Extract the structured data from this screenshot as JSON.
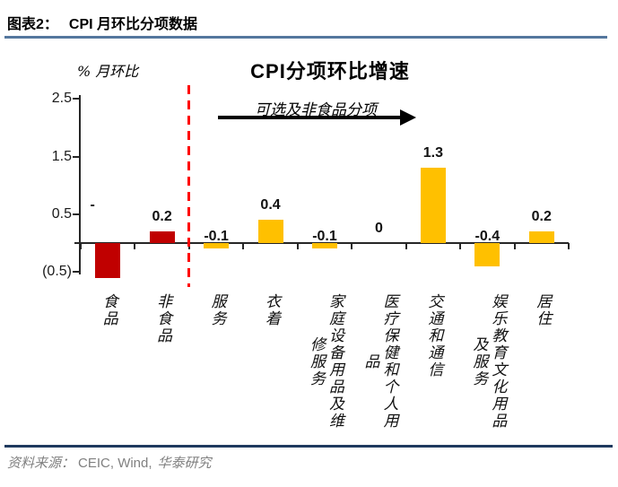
{
  "header": {
    "figure_label": "图表2：",
    "title": "CPI 月环比分项数据"
  },
  "footer": {
    "source_label": "资料来源：",
    "sources": "CEIC, Wind,",
    "org": "华泰研究"
  },
  "colors": {
    "negative_series_red": "#C00000",
    "optional_series_gold": "#FFC000",
    "divider_red": "#FF0000",
    "header_rule_blue": "#54779E",
    "footer_rule_navy": "#1F3A5F",
    "source_text_gray": "#808080",
    "axis_dark": "#262626"
  },
  "chart_data": {
    "type": "bar",
    "title": "CPI分项环比增速",
    "ylabel": "% 月环比",
    "annotation": "可选及非食品分项",
    "grid": false,
    "legend": "none",
    "ylim": [
      -0.6,
      2.5
    ],
    "y_ticks": [
      {
        "value": 2.5,
        "label": "2.5"
      },
      {
        "value": 1.5,
        "label": "1.5"
      },
      {
        "value": 0.5,
        "label": "0.5"
      },
      {
        "value": -0.5,
        "label": "(0.5)"
      }
    ],
    "divider_after_index": 2,
    "categories": [
      "食品",
      "非食品",
      "服务",
      "衣着",
      "家庭设备用品及维修服务",
      "医疗保健和个人用品",
      "交通和通信",
      "娱乐教育文化用品及服务",
      "居住"
    ],
    "points": [
      {
        "category": "食品",
        "columns": [
          "食品"
        ],
        "value": -0.6,
        "label": "-",
        "color": "#C00000"
      },
      {
        "category": "非食品",
        "columns": [
          "非食品"
        ],
        "value": 0.2,
        "label": "0.2",
        "color": "#C00000"
      },
      {
        "category": "服务",
        "columns": [
          "服务"
        ],
        "value": -0.1,
        "label": "-0.1",
        "color": "#FFC000"
      },
      {
        "category": "衣着",
        "columns": [
          "衣着"
        ],
        "value": 0.4,
        "label": "0.4",
        "color": "#FFC000"
      },
      {
        "category": "家庭设备用品及维修服务",
        "columns": [
          "家庭设备用品及维",
          "修服务"
        ],
        "value": -0.1,
        "label": "-0.1",
        "color": "#FFC000"
      },
      {
        "category": "医疗保健和个人用品",
        "columns": [
          "医疗保健和个人用",
          "品"
        ],
        "value": 0,
        "label": "0",
        "color": "#FFC000"
      },
      {
        "category": "交通和通信",
        "columns": [
          "交通和通信"
        ],
        "value": 1.3,
        "label": "1.3",
        "color": "#FFC000"
      },
      {
        "category": "娱乐教育文化用品及服务",
        "columns": [
          "娱乐教育文化用品",
          "及服务"
        ],
        "value": -0.4,
        "label": "-0.4",
        "color": "#FFC000"
      },
      {
        "category": "居住",
        "columns": [
          "居住"
        ],
        "value": 0.2,
        "label": "0.2",
        "color": "#FFC000"
      }
    ]
  }
}
